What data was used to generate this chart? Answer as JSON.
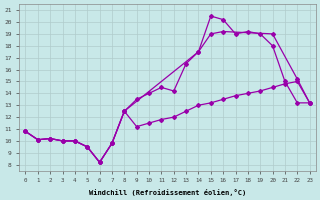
{
  "xlabel": "Windchill (Refroidissement éolien,°C)",
  "x_ticks": [
    0,
    1,
    2,
    3,
    4,
    5,
    6,
    7,
    8,
    9,
    10,
    11,
    12,
    13,
    14,
    15,
    16,
    17,
    18,
    19,
    20,
    21,
    22,
    23
  ],
  "y_ticks": [
    8,
    9,
    10,
    11,
    12,
    13,
    14,
    15,
    16,
    17,
    18,
    19,
    20,
    21
  ],
  "xlim": [
    -0.5,
    23.5
  ],
  "ylim": [
    7.5,
    21.5
  ],
  "background_color": "#c8e8e8",
  "line_color": "#9900aa",
  "grid_color": "#b0cccc",
  "line1_x": [
    0,
    1,
    2,
    3,
    4,
    5,
    6,
    7,
    8,
    9,
    10,
    11,
    12,
    13,
    14,
    15,
    16,
    17,
    18,
    19,
    20,
    21,
    22,
    23
  ],
  "line1_y": [
    10.8,
    10.1,
    10.2,
    10.0,
    10.0,
    9.5,
    8.2,
    9.8,
    12.5,
    11.2,
    11.5,
    11.8,
    12.0,
    12.5,
    13.0,
    13.2,
    13.5,
    13.8,
    14.0,
    14.2,
    14.5,
    14.8,
    15.0,
    13.2
  ],
  "line2_x": [
    0,
    1,
    2,
    3,
    4,
    5,
    6,
    7,
    8,
    9,
    10,
    11,
    12,
    13,
    14,
    15,
    16,
    17,
    18,
    19,
    20,
    21,
    22,
    23
  ],
  "line2_y": [
    10.8,
    10.1,
    10.2,
    10.0,
    10.0,
    9.5,
    8.2,
    9.8,
    12.5,
    13.5,
    14.0,
    14.5,
    14.2,
    16.5,
    17.5,
    20.5,
    20.2,
    19.0,
    19.2,
    19.0,
    18.0,
    15.0,
    13.2,
    13.2
  ],
  "line3_x": [
    0,
    1,
    2,
    3,
    4,
    5,
    6,
    7,
    8,
    14,
    15,
    16,
    20,
    22,
    23
  ],
  "line3_y": [
    10.8,
    10.1,
    10.2,
    10.0,
    10.0,
    9.5,
    8.2,
    9.8,
    12.5,
    17.5,
    19.0,
    19.2,
    19.0,
    15.2,
    13.2
  ]
}
